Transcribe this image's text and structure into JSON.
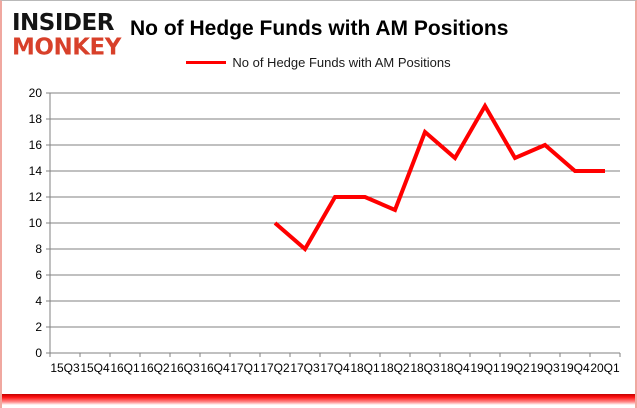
{
  "branding": {
    "line1": "INSIDER",
    "line2": "MONKEY"
  },
  "header": {
    "title": "No of Hedge Funds with AM Positions"
  },
  "legend": {
    "label": "No of Hedge Funds with AM Positions"
  },
  "colors": {
    "series_line": "#ff0000",
    "gridline": "#808080",
    "axis": "#808080",
    "label_text": "#000000",
    "logo_black": "#141414",
    "logo_red": "#d8402a",
    "bottom_bar_red": "#ff1414"
  },
  "chart_data": {
    "type": "line",
    "title": "No of Hedge Funds with AM Positions",
    "xlabel": "",
    "ylabel": "",
    "categories": [
      "15Q3",
      "15Q4",
      "16Q1",
      "16Q2",
      "16Q3",
      "16Q4",
      "17Q1",
      "17Q2",
      "17Q3",
      "17Q4",
      "18Q1",
      "18Q2",
      "18Q3",
      "18Q4",
      "19Q1",
      "19Q2",
      "19Q3",
      "19Q4",
      "20Q1"
    ],
    "series": [
      {
        "name": "No of Hedge Funds with AM Positions",
        "color": "#ff0000",
        "values": [
          null,
          null,
          null,
          null,
          null,
          null,
          null,
          10,
          8,
          12,
          12,
          11,
          17,
          15,
          19,
          15,
          16,
          14,
          14
        ]
      }
    ],
    "ylim": [
      0,
      20
    ],
    "ytick_step": 2,
    "grid": true,
    "legend_position": "top"
  }
}
